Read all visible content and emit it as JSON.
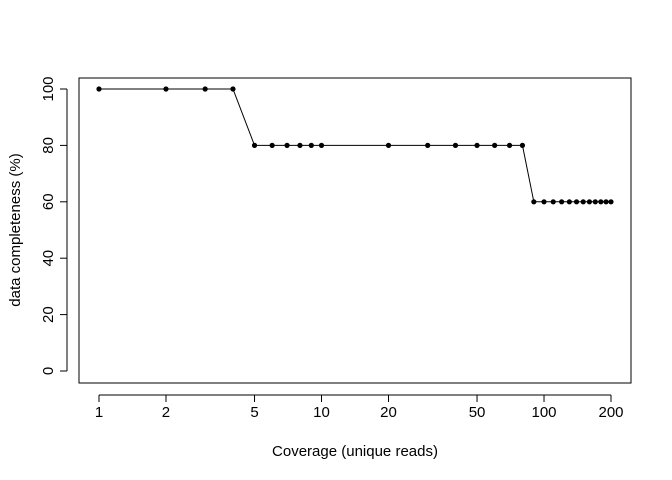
{
  "chart_data": {
    "type": "line",
    "title": "",
    "xlabel": "Coverage (unique reads)",
    "ylabel": "data completeness (%)",
    "x_scale": "log",
    "xlim": [
      1,
      200
    ],
    "ylim": [
      0,
      100
    ],
    "x_ticks": [
      1,
      2,
      5,
      10,
      20,
      50,
      100,
      200
    ],
    "y_ticks": [
      0,
      20,
      40,
      60,
      80,
      100
    ],
    "grid": false,
    "series": [
      {
        "x": [
          1,
          2,
          3,
          4,
          5,
          6,
          7,
          8,
          9,
          10,
          20,
          30,
          40,
          50,
          60,
          70,
          80,
          90,
          100,
          110,
          120,
          130,
          140,
          150,
          160,
          170,
          180,
          190,
          200
        ],
        "y": [
          100,
          100,
          100,
          100,
          80,
          80,
          80,
          80,
          80,
          80,
          80,
          80,
          80,
          80,
          80,
          80,
          80,
          60,
          60,
          60,
          60,
          60,
          60,
          60,
          60,
          60,
          60,
          60,
          60
        ]
      }
    ],
    "line_color": "#000000",
    "marker": "filled-circle"
  }
}
